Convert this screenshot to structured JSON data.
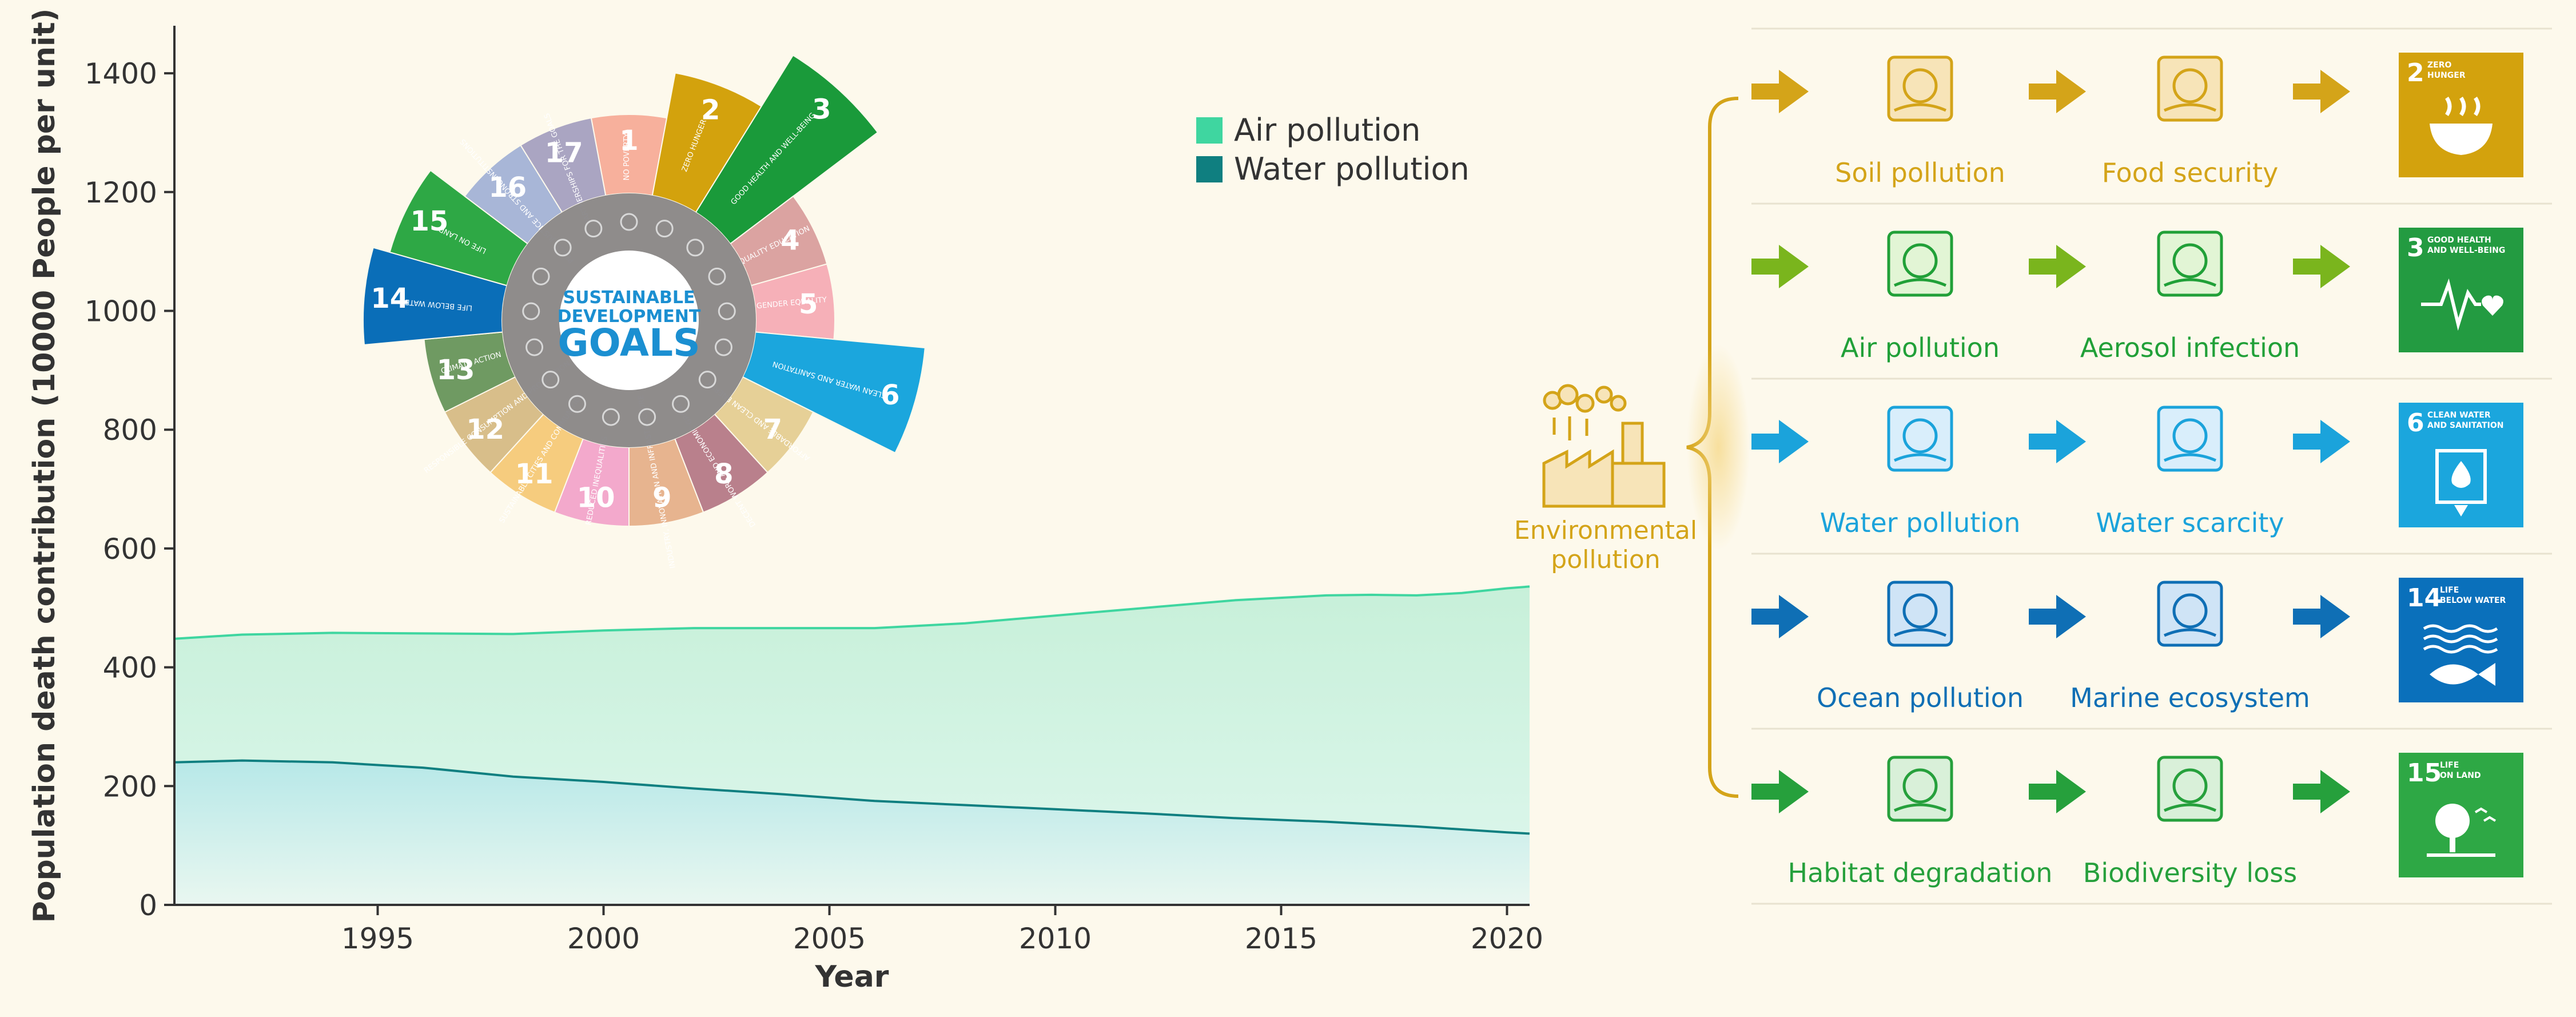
{
  "chart_data": {
    "type": "area",
    "xlabel": "Year",
    "ylabel": "Population death contribution (10000 People per unit)",
    "x_range": [
      1990.5,
      2020.5
    ],
    "ylim": [
      0,
      1480
    ],
    "x_ticks": [
      "1995",
      "2000",
      "2005",
      "2010",
      "2015",
      "2020"
    ],
    "y_ticks": [
      "0",
      "200",
      "400",
      "600",
      "800",
      "1000",
      "1200",
      "1400"
    ],
    "legend_position": "top-right",
    "series": [
      {
        "name": "Air pollution",
        "color": "#3fd6a0",
        "x": [
          1990.5,
          1992,
          1994,
          1996,
          1998,
          2000,
          2002,
          2004,
          2006,
          2008,
          2010,
          2012,
          2014,
          2016,
          2017,
          2018,
          2019,
          2020,
          2020.5
        ],
        "y": [
          448,
          455,
          458,
          457,
          456,
          462,
          466,
          466,
          466,
          474,
          487,
          500,
          513,
          521,
          522,
          521,
          525,
          533,
          536
        ]
      },
      {
        "name": "Water pollution",
        "color": "#0f7f80",
        "x": [
          1990.5,
          1992,
          1994,
          1996,
          1998,
          2000,
          2002,
          2004,
          2006,
          2008,
          2010,
          2012,
          2014,
          2016,
          2018,
          2020,
          2020.5
        ],
        "y": [
          240,
          243,
          240,
          231,
          216,
          207,
          196,
          186,
          175,
          168,
          161,
          154,
          146,
          140,
          132,
          122,
          120
        ]
      }
    ]
  },
  "sdg_wheel": {
    "center_line1": "SUSTAINABLE",
    "center_line2": "DEVELOPMENT",
    "center_goals": "GOALS",
    "segments": [
      {
        "num": "1",
        "label": "NO POVERTY",
        "color": "#f7b09c"
      },
      {
        "num": "2",
        "label": "ZERO HUNGER",
        "color": "#d3a20d"
      },
      {
        "num": "3",
        "label": "GOOD HEALTH AND WELL-BEING",
        "color": "#1a9a3a"
      },
      {
        "num": "4",
        "label": "QUALITY EDUCATION",
        "color": "#dba3a1"
      },
      {
        "num": "5",
        "label": "GENDER EQUALITY",
        "color": "#f6b0b8"
      },
      {
        "num": "6",
        "label": "CLEAN WATER AND SANITATION",
        "color": "#1ba6dd"
      },
      {
        "num": "7",
        "label": "AFFORDABLE AND CLEAN ENERGY",
        "color": "#e6d097"
      },
      {
        "num": "8",
        "label": "DECENT WORK AND ECONOMIC GROWTH",
        "color": "#b9808c"
      },
      {
        "num": "9",
        "label": "INDUSTRY, INNOVATION AND INFRASTRUCTURE",
        "color": "#e7b48f"
      },
      {
        "num": "10",
        "label": "REDUCED INEQUALITIES",
        "color": "#f3a9cc"
      },
      {
        "num": "11",
        "label": "SUSTAINABLE CITIES AND COMMUNITIES",
        "color": "#f6cc7e"
      },
      {
        "num": "12",
        "label": "RESPONSIBLE CONSUMPTION AND PRODUCTION",
        "color": "#d8be8a"
      },
      {
        "num": "13",
        "label": "CLIMATE ACTION",
        "color": "#6f9a62"
      },
      {
        "num": "14",
        "label": "LIFE BELOW WATER",
        "color": "#0a6eb8"
      },
      {
        "num": "15",
        "label": "LIFE ON LAND",
        "color": "#2ea845"
      },
      {
        "num": "16",
        "label": "PEACE, JUSTICE AND STRONG INSTITUTIONS",
        "color": "#a8b6d7"
      },
      {
        "num": "17",
        "label": "PARTNERSHIPS FOR THE GOALS",
        "color": "#aaa5c2"
      }
    ]
  },
  "flow": {
    "source_line1": "Environmental",
    "source_line2": "pollution",
    "rows": [
      {
        "cause": "Soil pollution",
        "effect": "Food security",
        "color": "#d4a419",
        "sdg_num": "2",
        "sdg_line1": "ZERO",
        "sdg_line2": "HUNGER",
        "sdg_color": "#d3a20d",
        "icon": "bowl-icon"
      },
      {
        "cause": "Air pollution",
        "effect": "Aerosol infection",
        "color": "#21a038",
        "arrow_color": "#7ab51d",
        "sdg_num": "3",
        "sdg_line1": "GOOD HEALTH",
        "sdg_line2": "AND WELL-BEING",
        "sdg_color": "#239b41",
        "icon": "heartbeat-icon"
      },
      {
        "cause": "Water pollution",
        "effect": "Water scarcity",
        "color": "#1ba3db",
        "sdg_num": "6",
        "sdg_line1": "CLEAN WATER",
        "sdg_line2": "AND SANITATION",
        "sdg_color": "#1ba6dd",
        "icon": "water-drop-icon"
      },
      {
        "cause": "Ocean pollution",
        "effect": "Marine ecosystem",
        "color": "#0f6fb5",
        "sdg_num": "14",
        "sdg_line1": "LIFE",
        "sdg_line2": "BELOW WATER",
        "sdg_color": "#0a70bb",
        "icon": "fish-icon"
      },
      {
        "cause": "Habitat degradation",
        "effect": "Biodiversity loss",
        "color": "#26a03c",
        "sdg_num": "15",
        "sdg_line1": "LIFE",
        "sdg_line2": "ON LAND",
        "sdg_color": "#2ea845",
        "icon": "tree-icon"
      }
    ]
  }
}
